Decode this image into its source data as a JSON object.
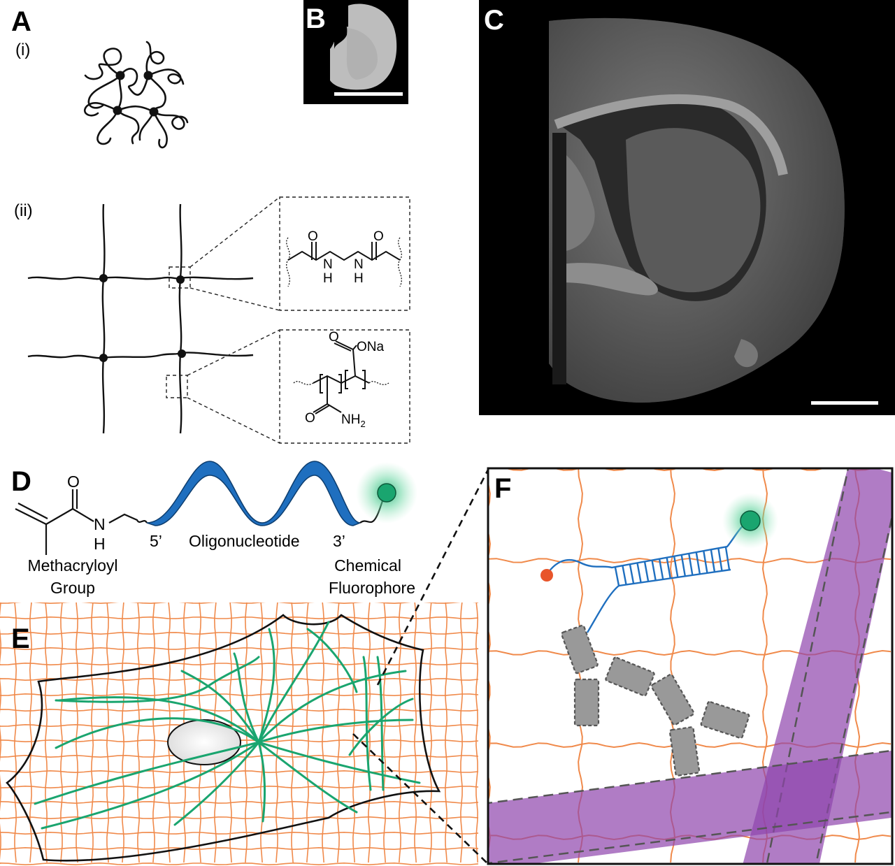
{
  "panels": {
    "a": {
      "label": "A",
      "sub_i": "(i)",
      "sub_ii": "(ii)"
    },
    "b": {
      "label": "B"
    },
    "c": {
      "label": "C"
    },
    "d": {
      "label": "D"
    },
    "e": {
      "label": "E"
    },
    "f": {
      "label": "F"
    }
  },
  "chem_crosslinker": {
    "o1": "O",
    "o2": "O",
    "h1": "H",
    "h2": "H",
    "n1": "N",
    "n2": "N"
  },
  "chem_polymer": {
    "ona": "ONa",
    "o": "O",
    "nh2": "NH",
    "sub2": "2"
  },
  "probe": {
    "o": "O",
    "n": "N",
    "h": "H",
    "five_prime": "5’",
    "oligo": "Oligonucleotide",
    "three_prime": "3’",
    "methacryloyl_line1": "Methacryloyl",
    "methacryloyl_line2": "Group",
    "fluor_line1": "Chemical",
    "fluor_line2": "Fluorophore"
  },
  "colors": {
    "gel_mesh": "#f08a4b",
    "fluorophore": "#1aa56f",
    "dna": "#1f6fbf",
    "protein": "#999999",
    "filament": "#8e44ad",
    "anchor": "#e8552a",
    "microscopy_bg": "#000000"
  },
  "icons": [
    "brain-slice-image",
    "brain-fluorescence-image",
    "fluorophore-glow-icon"
  ]
}
